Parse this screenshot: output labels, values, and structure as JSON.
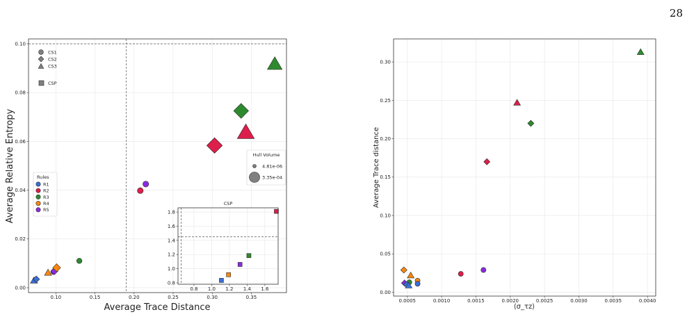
{
  "page_number": "28",
  "colors": {
    "R1": "#3b6fd8",
    "R2": "#dc1f4b",
    "R3": "#2e8a2e",
    "R4": "#f7870f",
    "R5": "#8a2be2",
    "grey": "#808080"
  },
  "chart_data": [
    {
      "type": "scatter",
      "title": "",
      "xlabel": "Average Trace Distance",
      "ylabel": "Average Relative Entropy",
      "xlim": [
        0.065,
        0.395
      ],
      "ylim": [
        -0.002,
        0.102
      ],
      "xticks": [
        "0.10",
        "0.15",
        "0.20",
        "0.25",
        "0.30",
        "0.35"
      ],
      "yticks": [
        "0.00",
        "0.02",
        "0.04",
        "0.06",
        "0.08",
        "0.10"
      ],
      "grid": true,
      "reference_lines": {
        "x": 0.19,
        "y": 0.1
      },
      "shape_legend": {
        "entries": [
          "CS1",
          "CS2",
          "CS3",
          "CSP"
        ],
        "placement": "top-left"
      },
      "rules_legend": {
        "title": "Rules",
        "entries": [
          "R1",
          "R2",
          "R3",
          "R4",
          "R5"
        ],
        "placement": "center-left"
      },
      "size_legend": {
        "title": "Hull Volume",
        "entries": [
          "4.81e-06",
          "3.35e-04"
        ],
        "placement": "center-right"
      },
      "points": [
        {
          "rule": "R1",
          "shape": "triangle",
          "x": 0.072,
          "y": 0.003,
          "size": 0.1
        },
        {
          "rule": "R1",
          "shape": "diamond",
          "x": 0.075,
          "y": 0.0035,
          "size": 0.1
        },
        {
          "rule": "R4",
          "shape": "triangle",
          "x": 0.09,
          "y": 0.0062,
          "size": 0.1
        },
        {
          "rule": "R5",
          "shape": "circle",
          "x": 0.097,
          "y": 0.0065,
          "size": 0.1
        },
        {
          "rule": "R5",
          "shape": "diamond",
          "x": 0.098,
          "y": 0.0068,
          "size": 0.15
        },
        {
          "rule": "R4",
          "shape": "diamond",
          "x": 0.101,
          "y": 0.0082,
          "size": 0.2
        },
        {
          "rule": "R3",
          "shape": "circle",
          "x": 0.13,
          "y": 0.011,
          "size": 0.1
        },
        {
          "rule": "R2",
          "shape": "circle",
          "x": 0.208,
          "y": 0.0398,
          "size": 0.15
        },
        {
          "rule": "R5",
          "shape": "circle",
          "x": 0.215,
          "y": 0.0425,
          "size": 0.15
        },
        {
          "rule": "R2",
          "shape": "diamond",
          "x": 0.303,
          "y": 0.0583,
          "size": 0.75
        },
        {
          "rule": "R3",
          "shape": "diamond",
          "x": 0.337,
          "y": 0.0725,
          "size": 0.7
        },
        {
          "rule": "R2",
          "shape": "triangle",
          "x": 0.343,
          "y": 0.0638,
          "size": 0.75
        },
        {
          "rule": "R3",
          "shape": "triangle",
          "x": 0.38,
          "y": 0.0918,
          "size": 0.6
        }
      ],
      "inset": {
        "title": "CSP",
        "xlim": [
          0.62,
          1.75
        ],
        "ylim": [
          0.78,
          1.86
        ],
        "xticks": [
          "0.8",
          "1.0",
          "1.2",
          "1.4",
          "1.6"
        ],
        "yticks": [
          "0.8",
          "1.0",
          "1.2",
          "1.4",
          "1.6",
          "1.8"
        ],
        "reference_lines": {
          "x": 0.655,
          "y": 1.45
        },
        "points": [
          {
            "rule": "R1",
            "x": 1.11,
            "y": 0.835
          },
          {
            "rule": "R4",
            "x": 1.19,
            "y": 0.915
          },
          {
            "rule": "R5",
            "x": 1.32,
            "y": 1.06
          },
          {
            "rule": "R3",
            "x": 1.42,
            "y": 1.185
          },
          {
            "rule": "R2",
            "x": 1.73,
            "y": 1.81
          }
        ]
      }
    },
    {
      "type": "scatter",
      "title": "",
      "xlabel": "⟨σ_τz⟩",
      "ylabel": "Average Trace distance",
      "xlim": [
        0.0003,
        0.00412
      ],
      "ylim": [
        -0.005,
        0.33
      ],
      "xticks": [
        "0.0005",
        "0.0010",
        "0.0015",
        "0.0020",
        "0.0025",
        "0.0030",
        "0.0035",
        "0.0040"
      ],
      "yticks": [
        "0.00",
        "0.05",
        "0.10",
        "0.15",
        "0.20",
        "0.25",
        "0.30"
      ],
      "grid": true,
      "points": [
        {
          "rule": "R3",
          "shape": "triangle",
          "x": 0.0039,
          "y": 0.313
        },
        {
          "rule": "R2",
          "shape": "triangle",
          "x": 0.0021,
          "y": 0.247
        },
        {
          "rule": "R3",
          "shape": "diamond",
          "x": 0.0023,
          "y": 0.22
        },
        {
          "rule": "R2",
          "shape": "diamond",
          "x": 0.00166,
          "y": 0.17
        },
        {
          "rule": "R5",
          "shape": "circle",
          "x": 0.00161,
          "y": 0.029
        },
        {
          "rule": "R2",
          "shape": "circle",
          "x": 0.00128,
          "y": 0.024
        },
        {
          "rule": "R4",
          "shape": "diamond",
          "x": 0.00045,
          "y": 0.029
        },
        {
          "rule": "R4",
          "shape": "triangle",
          "x": 0.00055,
          "y": 0.022
        },
        {
          "rule": "R4",
          "shape": "circle",
          "x": 0.00065,
          "y": 0.015
        },
        {
          "rule": "R1",
          "shape": "circle",
          "x": 0.00065,
          "y": 0.011
        },
        {
          "rule": "R3",
          "shape": "circle",
          "x": 0.00053,
          "y": 0.013
        },
        {
          "rule": "R5",
          "shape": "diamond",
          "x": 0.00046,
          "y": 0.012
        },
        {
          "rule": "R1",
          "shape": "diamond",
          "x": 0.00049,
          "y": 0.01
        },
        {
          "rule": "R1",
          "shape": "triangle",
          "x": 0.00052,
          "y": 0.009
        }
      ]
    }
  ]
}
